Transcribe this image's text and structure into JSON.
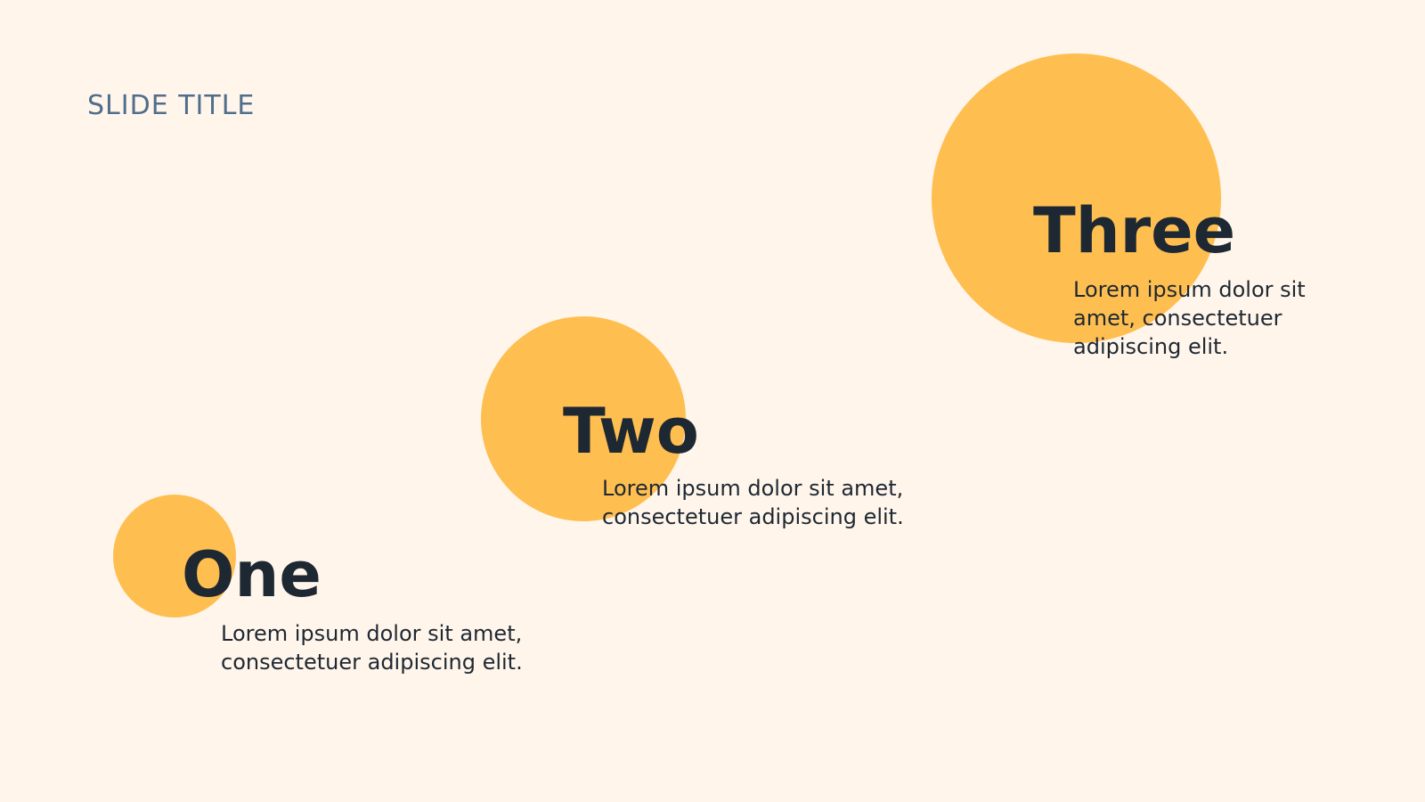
{
  "slide": {
    "title": "SLIDE TITLE"
  },
  "steps": [
    {
      "heading": "One",
      "body_line1": "Lorem ipsum dolor sit amet,",
      "body_line2": "consectetuer adipiscing elit."
    },
    {
      "heading": "Two",
      "body_line1": "Lorem ipsum dolor sit amet,",
      "body_line2": "consectetuer adipiscing elit."
    },
    {
      "heading": "Three",
      "body_line1": "Lorem ipsum dolor sit",
      "body_line2": "amet, consectetuer",
      "body_line3": "adipiscing elit."
    }
  ],
  "colors": {
    "background": "#FFF5EB",
    "circle": "#FFBE50",
    "title": "#4F6E8C",
    "text": "#1E2832"
  }
}
